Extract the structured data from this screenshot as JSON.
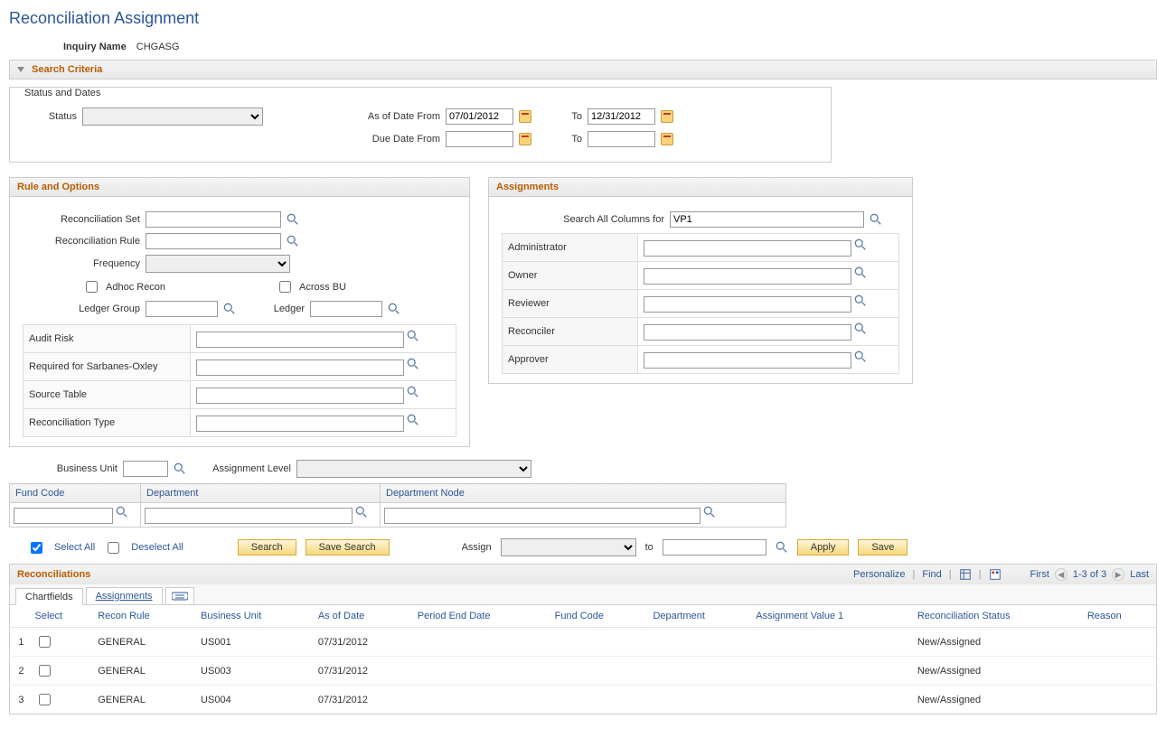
{
  "page": {
    "title": "Reconciliation Assignment",
    "inquiry_label": "Inquiry Name",
    "inquiry_value": "CHGASG"
  },
  "search_criteria": {
    "header": "Search Criteria",
    "status_dates": {
      "title": "Status and Dates",
      "status_label": "Status",
      "status_value": "",
      "as_of_from_label": "As of Date From",
      "as_of_from_value": "07/01/2012",
      "to_label": "To",
      "as_of_to_value": "12/31/2012",
      "due_from_label": "Due Date From",
      "due_from_value": "",
      "due_to_value": ""
    },
    "rule_options": {
      "title": "Rule and Options",
      "recon_set_label": "Reconciliation Set",
      "recon_set_value": "",
      "recon_rule_label": "Reconciliation Rule",
      "recon_rule_value": "",
      "frequency_label": "Frequency",
      "frequency_value": "",
      "adhoc_label": "Adhoc Recon",
      "across_bu_label": "Across BU",
      "ledger_group_label": "Ledger Group",
      "ledger_group_value": "",
      "ledger_label": "Ledger",
      "ledger_value": "",
      "attrs": [
        {
          "label": "Audit Risk",
          "value": ""
        },
        {
          "label": "Required for Sarbanes-Oxley",
          "value": ""
        },
        {
          "label": "Source Table",
          "value": ""
        },
        {
          "label": "Reconciliation Type",
          "value": ""
        }
      ]
    },
    "assignments": {
      "title": "Assignments",
      "search_all_label": "Search All Columns for",
      "search_all_value": "VP1",
      "roles": [
        {
          "label": "Administrator",
          "value": ""
        },
        {
          "label": "Owner",
          "value": ""
        },
        {
          "label": "Reviewer",
          "value": ""
        },
        {
          "label": "Reconciler",
          "value": ""
        },
        {
          "label": "Approver",
          "value": ""
        }
      ]
    }
  },
  "business_unit": {
    "label": "Business Unit",
    "value": "",
    "assignment_level_label": "Assignment Level",
    "assignment_level_value": ""
  },
  "chartfields": {
    "fund_code_label": "Fund Code",
    "department_label": "Department",
    "department_node_label": "Department Node",
    "fund_code_value": "",
    "department_value": "",
    "department_node_value": ""
  },
  "actions": {
    "select_all": "Select All",
    "deselect_all": "Deselect All",
    "search": "Search",
    "save_search": "Save Search",
    "assign_label": "Assign",
    "assign_value": "",
    "to_label": "to",
    "to_value": "",
    "apply": "Apply",
    "save": "Save"
  },
  "reconciliations": {
    "title": "Reconciliations",
    "personalize": "Personalize",
    "find": "Find",
    "first": "First",
    "range": "1-3 of 3",
    "last": "Last",
    "tabs": {
      "chartfields": "Chartfields",
      "assignments": "Assignments"
    },
    "columns": [
      "Select",
      "Recon Rule",
      "Business Unit",
      "As of Date",
      "Period End Date",
      "Fund Code",
      "Department",
      "Assignment Value 1",
      "Reconciliation Status",
      "Reason"
    ],
    "rows": [
      {
        "n": "1",
        "rule": "GENERAL",
        "bu": "US001",
        "as_of": "07/31/2012",
        "ped": "",
        "fund": "",
        "dept": "",
        "av1": "",
        "status": "New/Assigned",
        "reason": ""
      },
      {
        "n": "2",
        "rule": "GENERAL",
        "bu": "US003",
        "as_of": "07/31/2012",
        "ped": "",
        "fund": "",
        "dept": "",
        "av1": "",
        "status": "New/Assigned",
        "reason": ""
      },
      {
        "n": "3",
        "rule": "GENERAL",
        "bu": "US004",
        "as_of": "07/31/2012",
        "ped": "",
        "fund": "",
        "dept": "",
        "av1": "",
        "status": "New/Assigned",
        "reason": ""
      }
    ]
  }
}
